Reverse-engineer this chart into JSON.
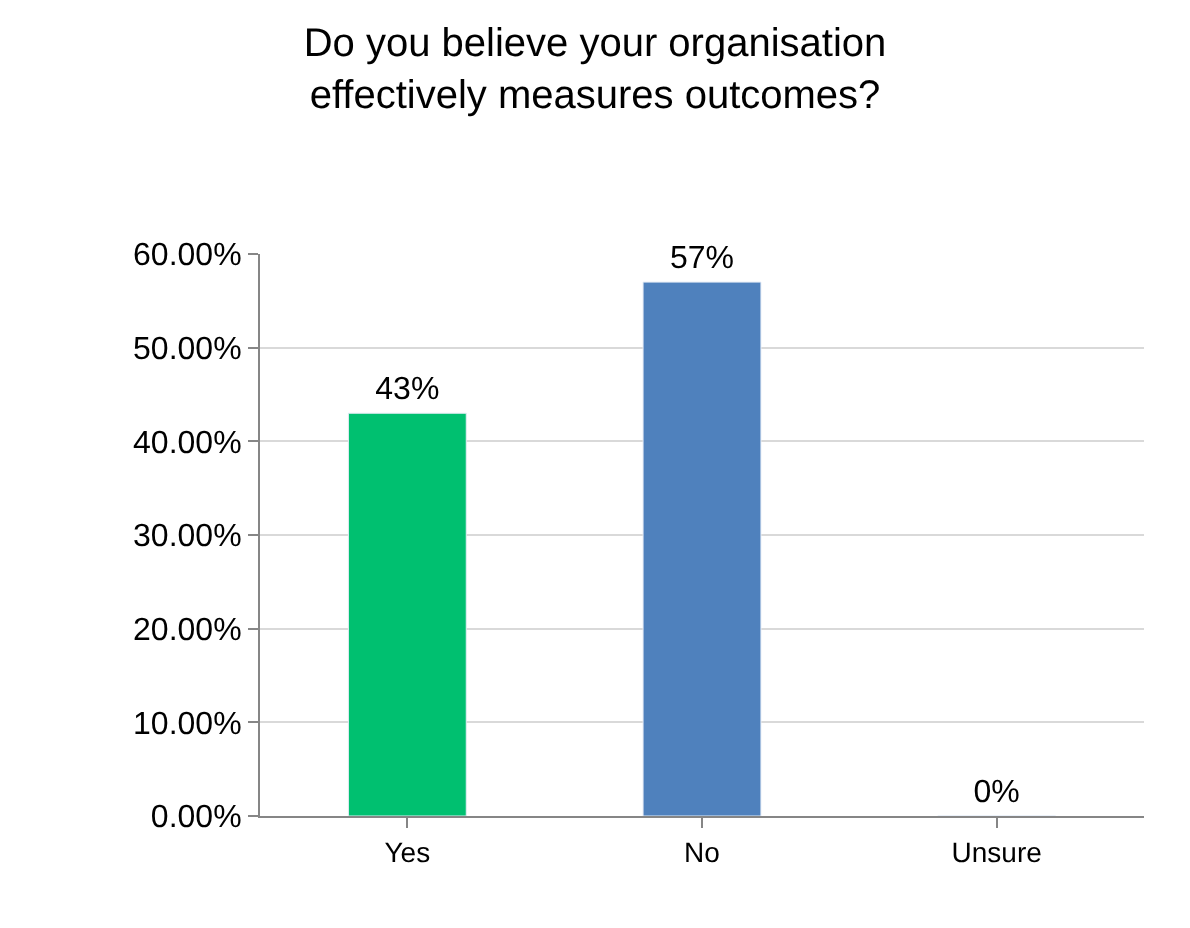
{
  "chart_data": {
    "type": "bar",
    "title": "Do you believe your organisation\neffectively measures outcomes?",
    "categories": [
      "Yes",
      "No",
      "Unsure"
    ],
    "values": [
      43,
      57,
      0
    ],
    "colors": [
      "#00c070",
      "#4f81bd",
      null
    ],
    "value_labels": [
      "43%",
      "57%",
      "0%"
    ],
    "ylim": [
      0,
      60
    ],
    "yticks": [
      {
        "value": 0,
        "label": "0.00%"
      },
      {
        "value": 10,
        "label": "10.00%"
      },
      {
        "value": 20,
        "label": "20.00%"
      },
      {
        "value": 30,
        "label": "30.00%"
      },
      {
        "value": 40,
        "label": "40.00%"
      },
      {
        "value": 50,
        "label": "50.00%"
      },
      {
        "value": 60,
        "label": "60.00%"
      }
    ],
    "grid": "y",
    "legend": false
  }
}
